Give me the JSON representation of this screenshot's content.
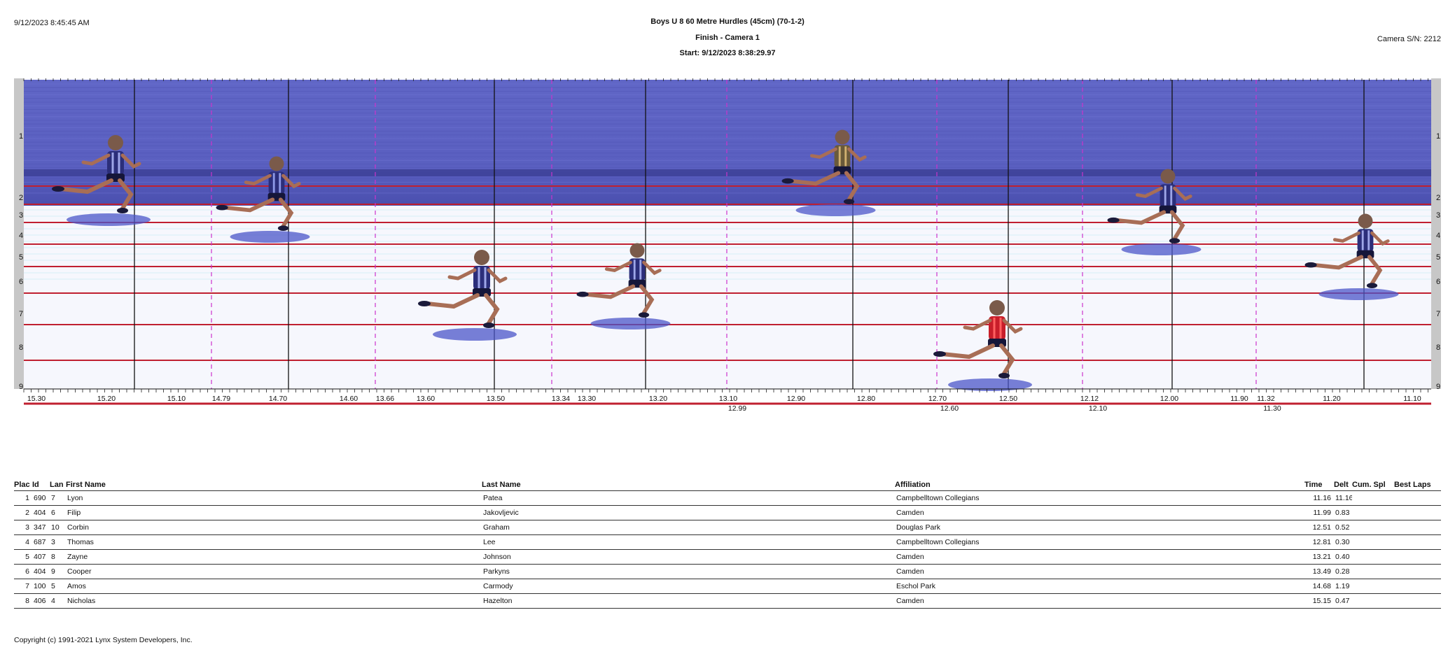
{
  "header": {
    "printed_at": "9/12/2023 8:45:45 AM",
    "event_title": "Boys U 8 60 Metre Hurdles (45cm) (70-1-2)",
    "camera_label": "Finish - Camera 1",
    "start_time": "Start: 9/12/2023 8:38:29.97",
    "camera_serial": "Camera S/N: 2212"
  },
  "photo": {
    "sky_color": "#5d63c3",
    "track_line_color": "#c02030",
    "marker_color": "#cc33cc",
    "lanes": [
      "1",
      "2",
      "3",
      "4",
      "5",
      "6",
      "7",
      "8",
      "9"
    ],
    "time_ticks": [
      "15.30",
      "15.20",
      "15.10",
      "14.79",
      "14.70",
      "14.60",
      "13.66",
      "13.60",
      "13.50",
      "13.34",
      "13.30",
      "13.20",
      "13.10",
      "12.99",
      "12.90",
      "12.80",
      "12.70",
      "12.60",
      "12.50",
      "12.12",
      "12.10",
      "12.00",
      "11.90",
      "11.32",
      "11.30",
      "11.20",
      "11.10"
    ]
  },
  "results": {
    "columns": [
      "Plac",
      "Id",
      "Lan",
      "First Name",
      "Last Name",
      "Affiliation",
      "Time",
      "Delt",
      "Cum. Spl",
      "Best",
      "Laps"
    ],
    "rows": [
      {
        "place": "1",
        "id": "690",
        "lane": "7",
        "first": "Lyon",
        "last": "Patea",
        "affiliation": "Campbelltown Collegians",
        "time": "11.16",
        "delta": "11.16"
      },
      {
        "place": "2",
        "id": "404",
        "lane": "6",
        "first": "Filip",
        "last": "Jakovljevic",
        "affiliation": "Camden",
        "time": "11.99",
        "delta": "0.83"
      },
      {
        "place": "3",
        "id": "347",
        "lane": "10",
        "first": "Corbin",
        "last": "Graham",
        "affiliation": "Douglas Park",
        "time": "12.51",
        "delta": "0.52"
      },
      {
        "place": "4",
        "id": "687",
        "lane": "3",
        "first": "Thomas",
        "last": "Lee",
        "affiliation": "Campbelltown Collegians",
        "time": "12.81",
        "delta": "0.30"
      },
      {
        "place": "5",
        "id": "407",
        "lane": "8",
        "first": "Zayne",
        "last": "Johnson",
        "affiliation": "Camden",
        "time": "13.21",
        "delta": "0.40"
      },
      {
        "place": "6",
        "id": "404",
        "lane": "9",
        "first": "Cooper",
        "last": "Parkyns",
        "affiliation": "Camden",
        "time": "13.49",
        "delta": "0.28"
      },
      {
        "place": "7",
        "id": "100",
        "lane": "5",
        "first": "Amos",
        "last": "Carmody",
        "affiliation": "Eschol Park",
        "time": "14.68",
        "delta": "1.19"
      },
      {
        "place": "8",
        "id": "406",
        "lane": "4",
        "first": "Nicholas",
        "last": "Hazelton",
        "affiliation": "Camden",
        "time": "15.15",
        "delta": "0.47"
      }
    ]
  },
  "footer": {
    "copyright": "Copyright (c) 1991-2021 Lynx System Developers, Inc."
  }
}
